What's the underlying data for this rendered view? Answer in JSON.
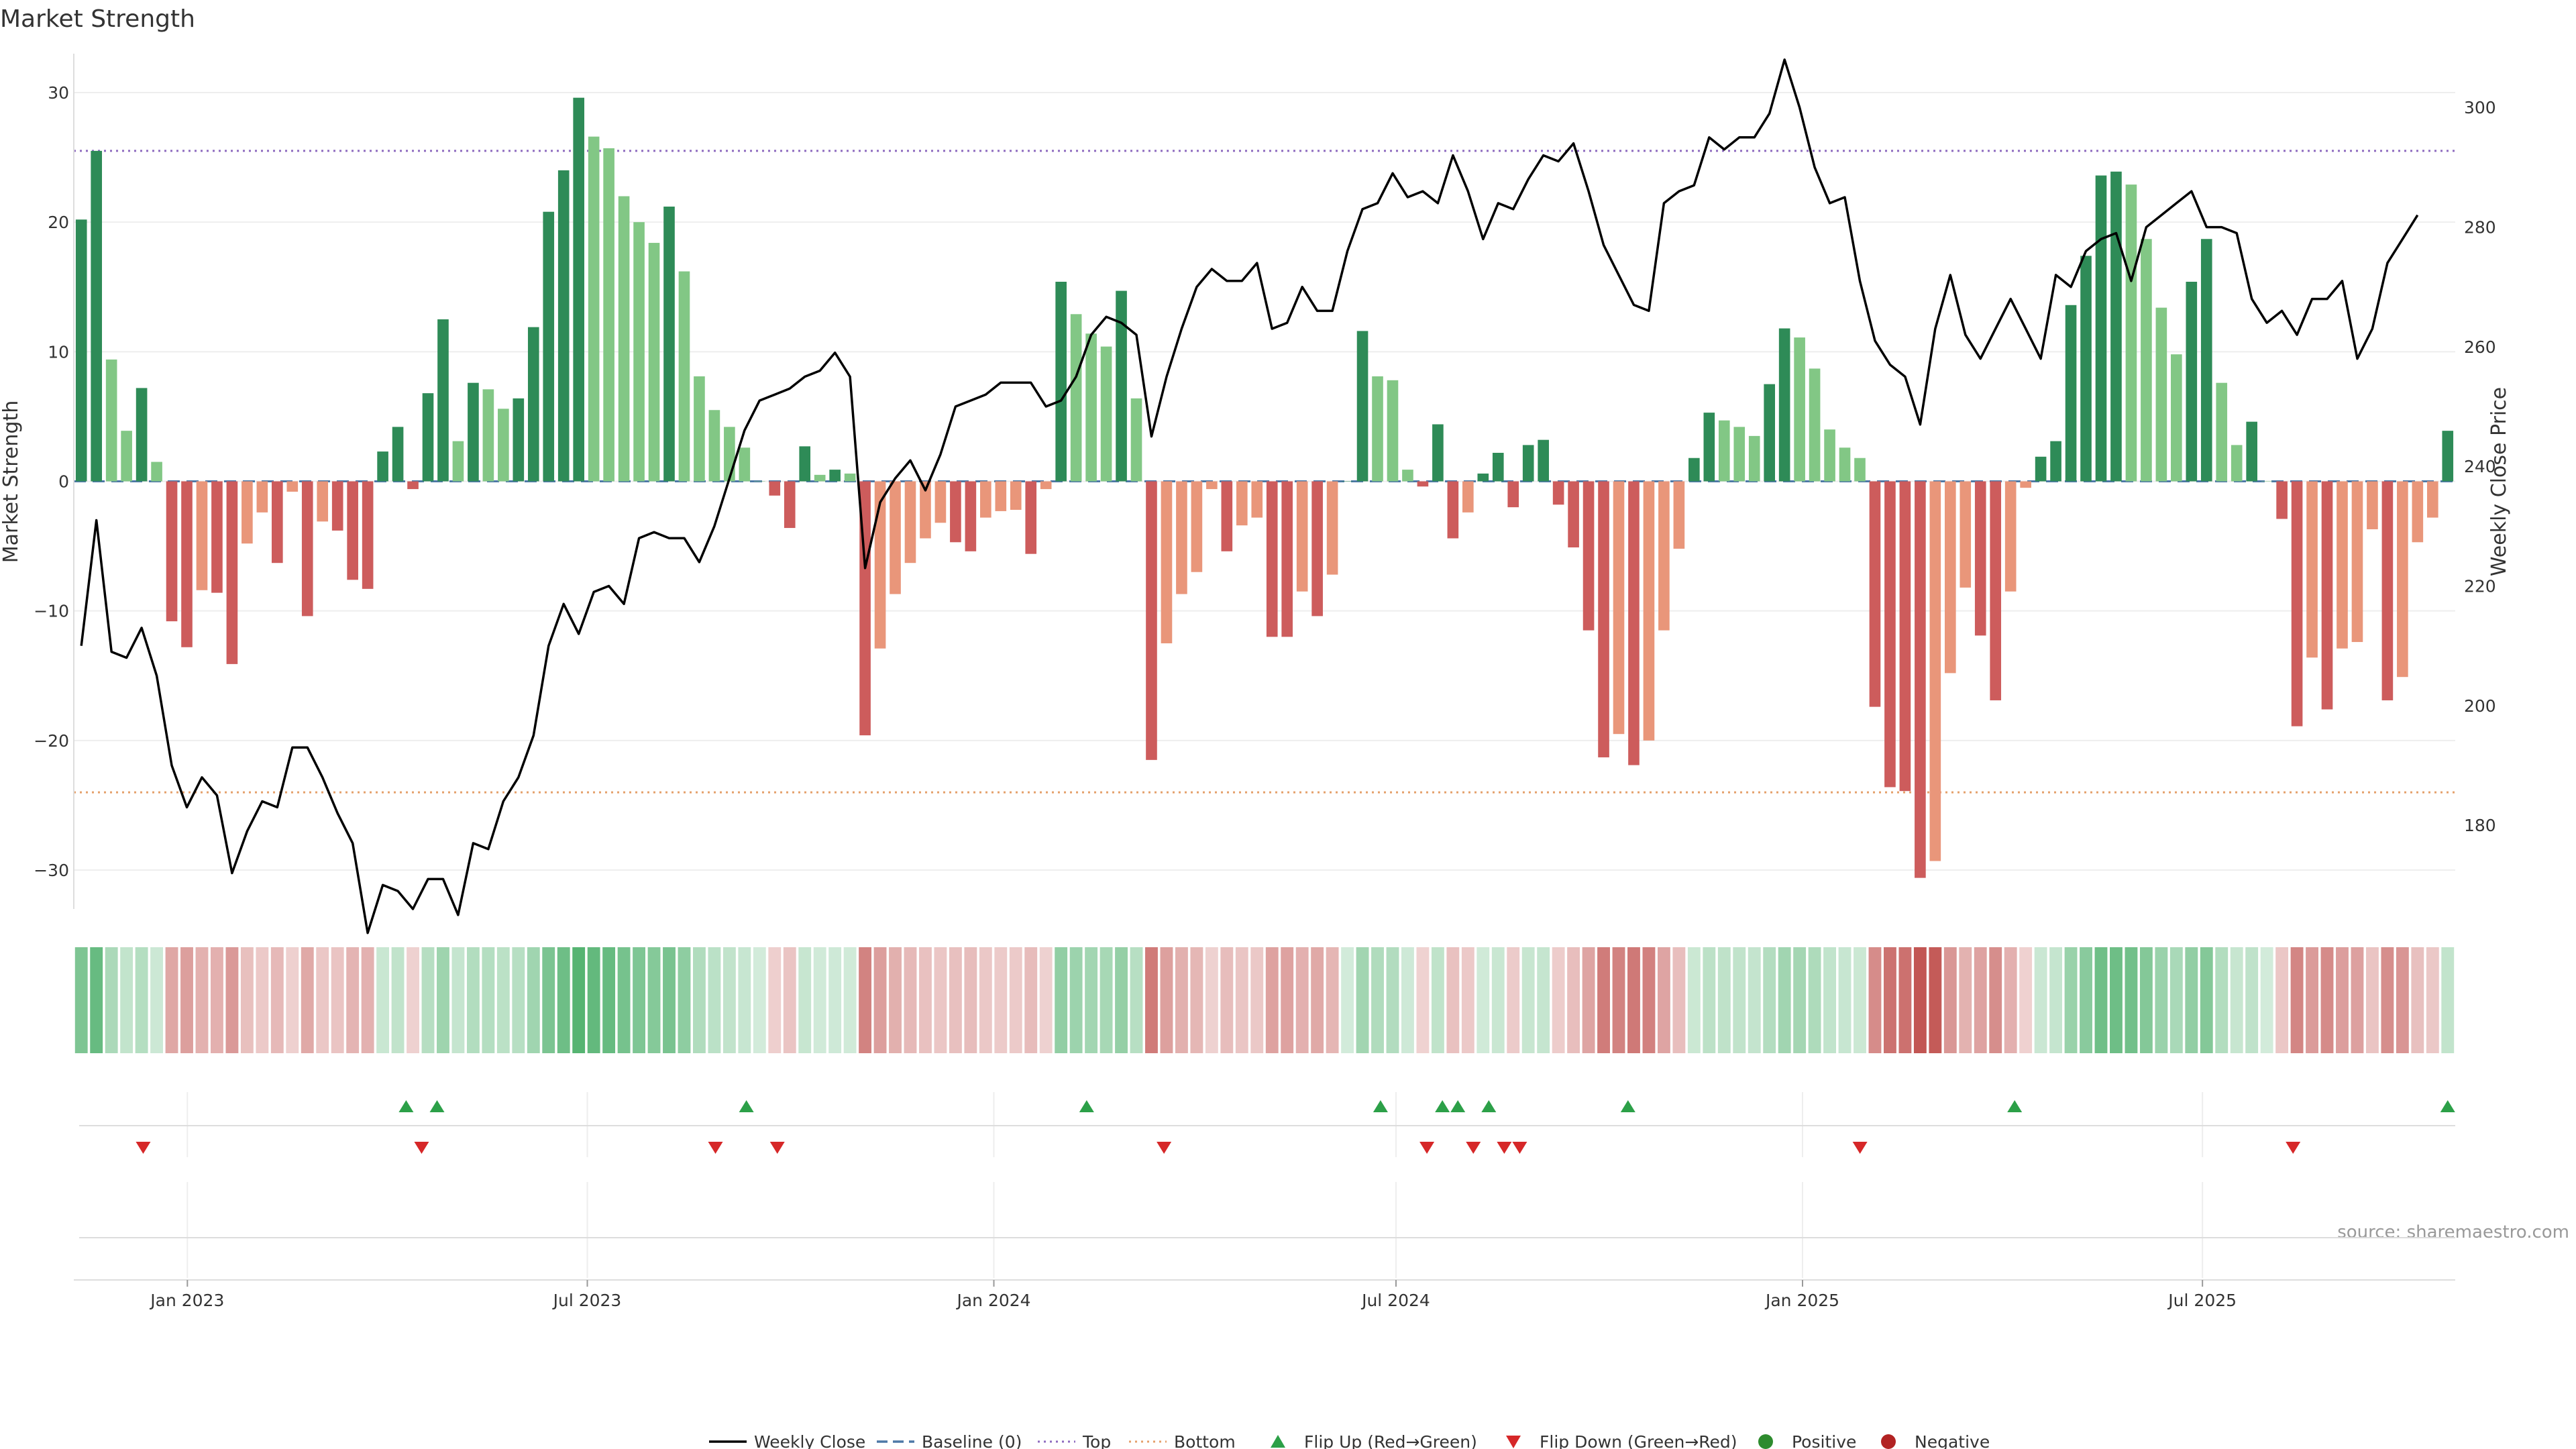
{
  "chart_data": {
    "type": "bar",
    "title": "Market Strength",
    "ylabel": "Market Strength",
    "y2label": "Weekly Close Price",
    "source": "source: sharemaestro.com",
    "ylim": [
      -33,
      33
    ],
    "y2lim": [
      166,
      309
    ],
    "yticks": [
      30,
      20,
      10,
      0,
      -10,
      -20,
      -30
    ],
    "y2ticks": [
      300,
      280,
      260,
      240,
      220,
      200,
      180
    ],
    "x_start": "2022-11-14",
    "x_end": "2025-10-20",
    "xticks": [
      {
        "label": "Jan 2023",
        "date": "2023-01-01"
      },
      {
        "label": "Jul 2023",
        "date": "2023-07-01"
      },
      {
        "label": "Jan 2024",
        "date": "2024-01-01"
      },
      {
        "label": "Jul 2024",
        "date": "2024-07-01"
      },
      {
        "label": "Jan 2025",
        "date": "2025-01-01"
      },
      {
        "label": "Jul 2025",
        "date": "2025-07-01"
      }
    ],
    "reference_lines": {
      "top": 25.5,
      "bottom": -24,
      "baseline": 0
    },
    "strength": [
      20.2,
      25.5,
      9.4,
      3.9,
      7.2,
      1.5,
      -10.8,
      -12.8,
      -8.4,
      -8.6,
      -14.1,
      -4.8,
      -2.4,
      -6.3,
      -0.8,
      -10.4,
      -3.1,
      -3.8,
      -7.6,
      -8.3,
      2.3,
      4.2,
      -0.6,
      6.8,
      12.5,
      3.1,
      7.6,
      7.1,
      5.6,
      6.4,
      11.9,
      20.8,
      24,
      29.6,
      26.6,
      25.7,
      22,
      20,
      18.4,
      21.2,
      16.2,
      8.1,
      5.5,
      4.2,
      2.6,
      0,
      -1.1,
      -3.6,
      2.7,
      0.5,
      0.9,
      0.6,
      -19.6,
      -12.9,
      -8.7,
      -6.3,
      -4.4,
      -3.2,
      -4.7,
      -5.4,
      -2.8,
      -2.3,
      -2.2,
      -5.6,
      -0.6,
      15.4,
      12.9,
      11.4,
      10.4,
      14.7,
      6.4,
      -21.5,
      -12.5,
      -8.7,
      -7,
      -0.6,
      -5.4,
      -3.4,
      -2.8,
      -12,
      -12,
      -8.5,
      -10.4,
      -7.2,
      0,
      11.6,
      8.1,
      7.8,
      0.9,
      -0.4,
      4.4,
      -4.4,
      -2.4,
      0.6,
      2.2,
      -2,
      2.8,
      3.2,
      -1.8,
      -5.1,
      -11.5,
      -21.3,
      -19.5,
      -21.9,
      -20,
      -11.5,
      -5.2,
      1.8,
      5.3,
      4.7,
      4.2,
      3.5,
      7.5,
      11.8,
      11.1,
      8.7,
      4,
      2.6,
      1.8,
      -17.4,
      -23.6,
      -23.9,
      -30.6,
      -29.3,
      -14.8,
      -8.2,
      -11.9,
      -16.9,
      -8.5,
      -0.5,
      1.9,
      3.1,
      13.6,
      17.4,
      23.6,
      23.9,
      22.9,
      18.7,
      13.4,
      9.8,
      15.4,
      18.7,
      7.6,
      2.8,
      4.6,
      0,
      -2.9,
      -18.9,
      -13.6,
      -17.6,
      -12.9,
      -12.4,
      -3.7,
      -16.9,
      -15.1,
      -4.7,
      -2.8,
      3.9
    ],
    "price": [
      210,
      231,
      209,
      208,
      213,
      205,
      190,
      183,
      188,
      185,
      172,
      179,
      184,
      183,
      193,
      193,
      188,
      182,
      177,
      162,
      170,
      169,
      166,
      171,
      171,
      165,
      177,
      176,
      184,
      188,
      195,
      210,
      217,
      212,
      219,
      220,
      217,
      228,
      229,
      228,
      228,
      224,
      230,
      238,
      246,
      251,
      252,
      253,
      255,
      256,
      259,
      255,
      223,
      234,
      238,
      241,
      236,
      242,
      250,
      251,
      252,
      254,
      254,
      254,
      250,
      251,
      255,
      262,
      265,
      264,
      262,
      245,
      255,
      263,
      270,
      273,
      271,
      271,
      274,
      263,
      264,
      270,
      266,
      266,
      276,
      283,
      284,
      289,
      285,
      286,
      284,
      292,
      286,
      278,
      284,
      283,
      288,
      292,
      291,
      294,
      286,
      277,
      272,
      267,
      266,
      284,
      286,
      287,
      295,
      293,
      295,
      295,
      299,
      308,
      300,
      290,
      284,
      285,
      271,
      261,
      257,
      255,
      247,
      263,
      272,
      262,
      258,
      263,
      268,
      263,
      258,
      272,
      270,
      276,
      278,
      279,
      271,
      280,
      282,
      284,
      286,
      280,
      280,
      279,
      268,
      264,
      266,
      262,
      268,
      268,
      271,
      258,
      263,
      274,
      278,
      282
    ],
    "flip_up": [
      "2023-04-10",
      "2023-04-24",
      "2023-09-11",
      "2024-02-12",
      "2024-06-24",
      "2024-07-22",
      "2024-07-29",
      "2024-08-12",
      "2024-10-14",
      "2025-04-07",
      "2025-10-20"
    ],
    "flip_down": [
      "2022-12-12",
      "2023-04-17",
      "2023-08-28",
      "2023-09-25",
      "2024-03-18",
      "2024-07-15",
      "2024-08-05",
      "2024-08-19",
      "2024-08-26",
      "2025-01-27",
      "2025-08-11"
    ],
    "colors": {
      "strong_up": "#2e8b57",
      "weak_up": "#82c785",
      "strong_down": "#cd5c5c",
      "weak_down": "#e9967a",
      "price_line": "#000000",
      "baseline": "#4e79a7",
      "top_line": "#8e6bbf",
      "bottom_line": "#e5a06b",
      "flip_up": "#2ca048",
      "flip_down": "#d62728",
      "positive": "#2e8b2e",
      "negative": "#b22222"
    },
    "legend": [
      {
        "label": "Weekly Close",
        "kind": "line"
      },
      {
        "label": "Baseline (0)",
        "kind": "dash"
      },
      {
        "label": "Top",
        "kind": "dot-purple"
      },
      {
        "label": "Bottom",
        "kind": "dot-orange"
      },
      {
        "label": "Flip Up (Red→Green)",
        "kind": "tri-up"
      },
      {
        "label": "Flip Down (Green→Red)",
        "kind": "tri-down"
      },
      {
        "label": "Positive",
        "kind": "circle-pos"
      },
      {
        "label": "Negative",
        "kind": "circle-neg"
      }
    ],
    "legend_position": "bottom-center",
    "grid": true
  }
}
